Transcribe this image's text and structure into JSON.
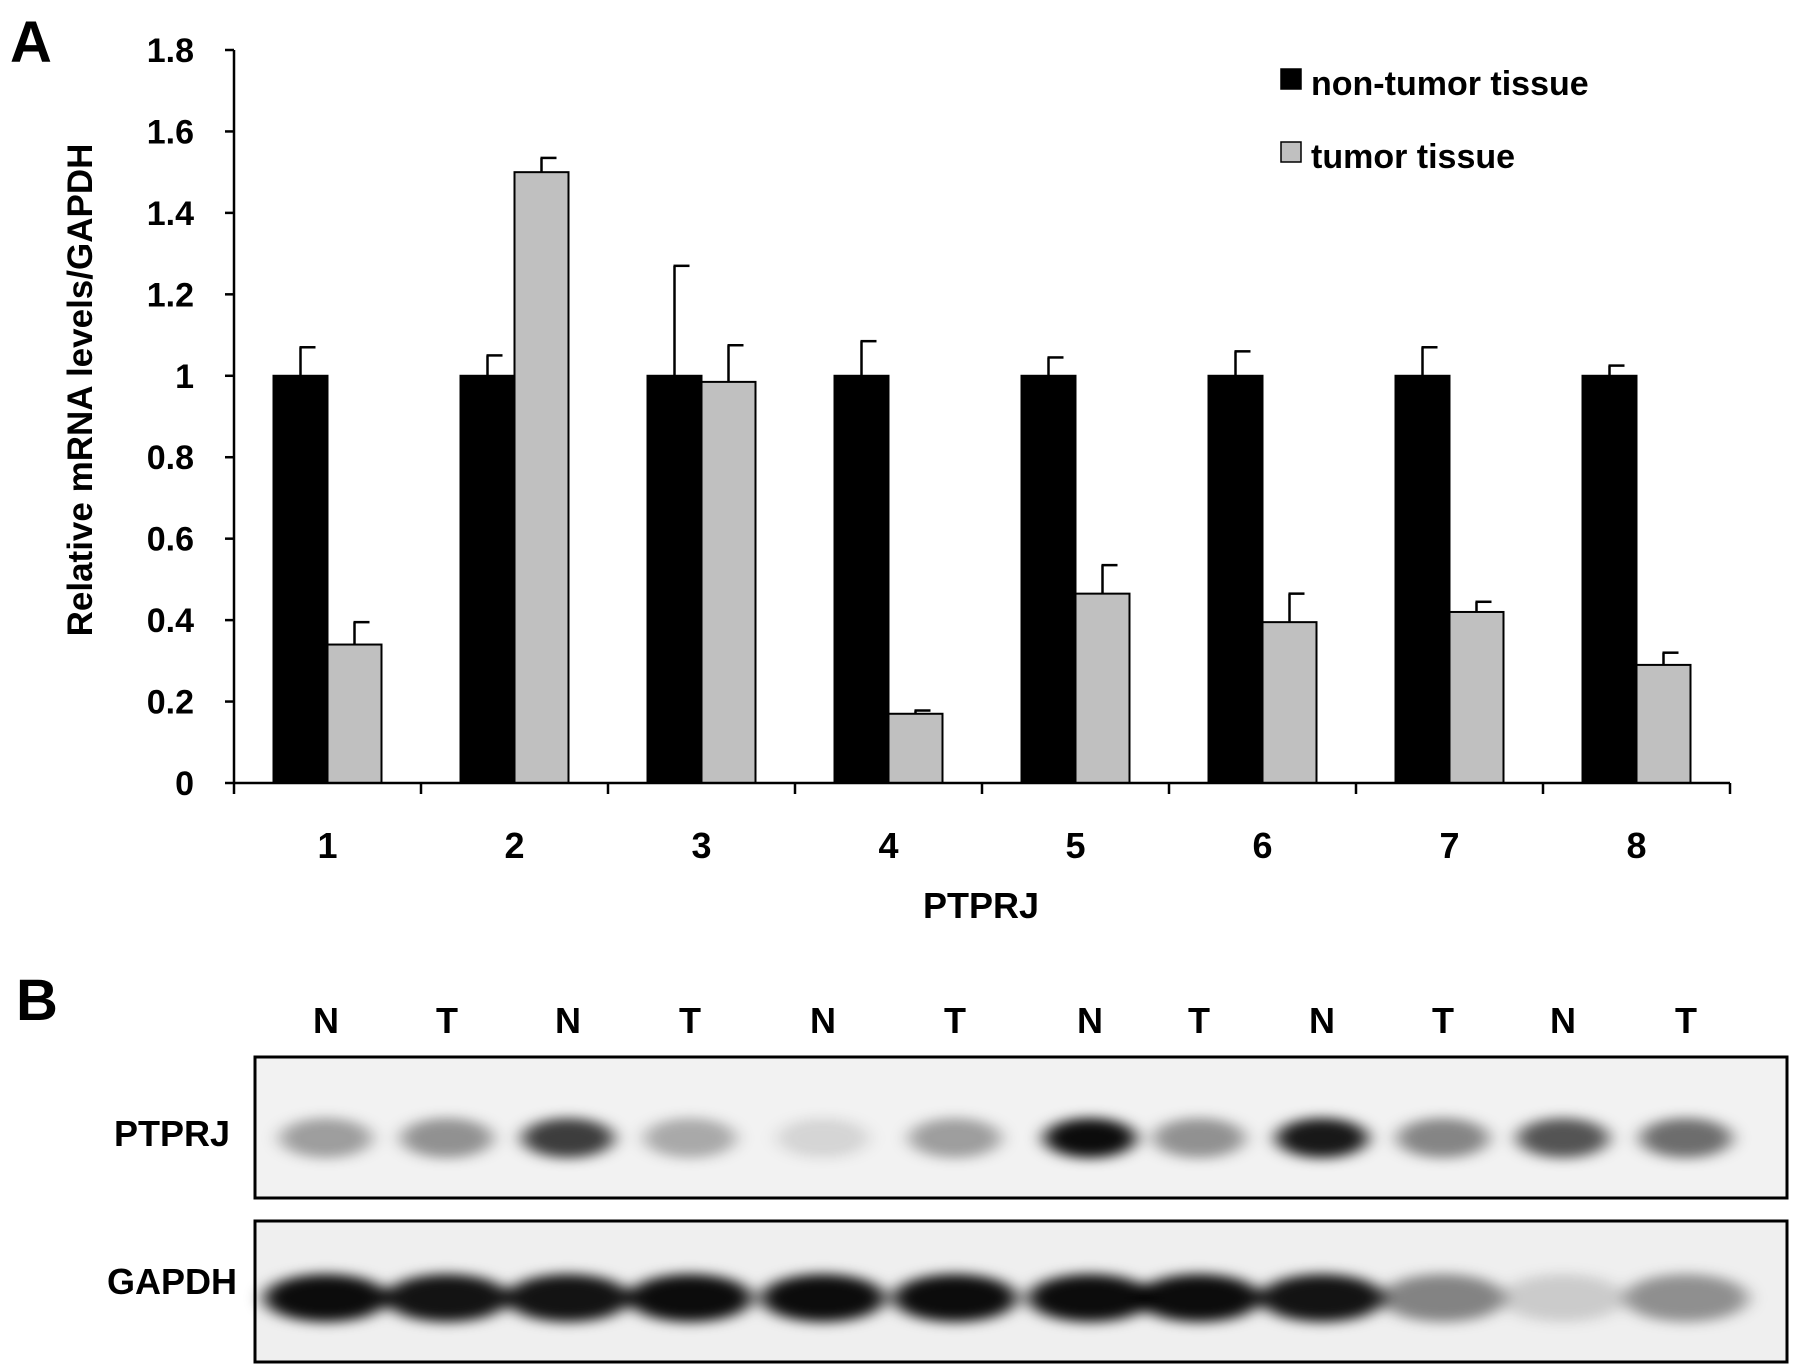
{
  "panel_a_label": "A",
  "panel_b_label": "B",
  "chart_data": {
    "type": "bar",
    "title": "",
    "xlabel": "PTPRJ",
    "ylabel": "Relative mRNA levels/GAPDH",
    "ylim": [
      0,
      1.8
    ],
    "yticks": [
      "0",
      "0.2",
      "0.4",
      "0.6",
      "0.8",
      "1",
      "1.2",
      "1.4",
      "1.6",
      "1.8"
    ],
    "categories": [
      "1",
      "2",
      "3",
      "4",
      "5",
      "6",
      "7",
      "8"
    ],
    "grid": false,
    "legend_position": "top-right",
    "series": [
      {
        "name": "non-tumor tissue",
        "color": "#000000",
        "values": [
          1,
          1,
          1,
          1,
          1,
          1,
          1,
          1
        ],
        "errors": [
          0.07,
          0.05,
          0.27,
          0.085,
          0.045,
          0.06,
          0.07,
          0.025
        ]
      },
      {
        "name": "tumor tissue",
        "color": "#c0c0c0",
        "values": [
          0.34,
          1.5,
          0.985,
          0.17,
          0.465,
          0.395,
          0.42,
          0.29
        ],
        "errors": [
          0.055,
          0.035,
          0.09,
          0.008,
          0.07,
          0.07,
          0.025,
          0.03
        ]
      }
    ]
  },
  "blot": {
    "lane_labels": [
      "N",
      "T",
      "N",
      "T",
      "N",
      "T",
      "N",
      "T",
      "N",
      "T",
      "N",
      "T"
    ],
    "rows": [
      {
        "label": "PTPRJ",
        "band_intensity": [
          0.35,
          0.4,
          0.75,
          0.3,
          0.12,
          0.35,
          0.95,
          0.4,
          0.9,
          0.45,
          0.65,
          0.55
        ]
      },
      {
        "label": "GAPDH",
        "band_intensity": [
          0.95,
          0.92,
          0.92,
          0.95,
          0.95,
          0.95,
          0.95,
          0.95,
          0.92,
          0.45,
          0.15,
          0.4
        ]
      }
    ]
  }
}
